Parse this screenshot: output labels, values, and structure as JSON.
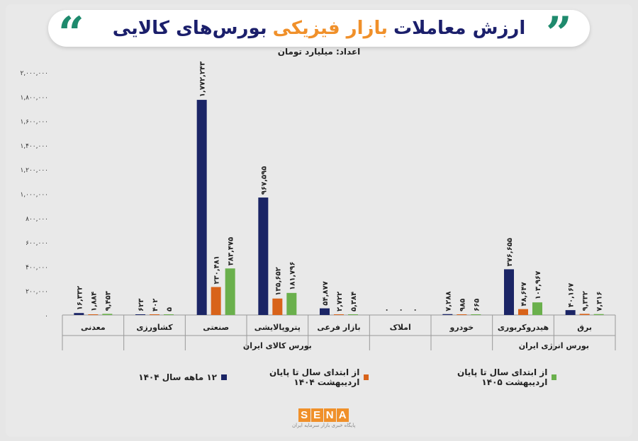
{
  "header": {
    "title_part1": "ارزش معاملات",
    "title_accent": "بازار فیزیکی",
    "title_part2": "بورس‌های کالایی",
    "unit": "اعداد: میلیارد تومان"
  },
  "colors": {
    "series_1": "#1b2566",
    "series_2": "#d8631a",
    "series_3": "#6ab04c",
    "accent": "#f0902a",
    "quote": "#1e8a6d"
  },
  "chart_data": {
    "type": "bar",
    "categories": [
      "معدنی",
      "کشاورزی",
      "صنعتی",
      "پتروپالایشی",
      "بازار فرعی",
      "املاک",
      "خودرو",
      "هیدروکربوری",
      "برق"
    ],
    "series": [
      {
        "name": "۱۲ ماهه سال ۱۴۰۴",
        "values": [
          16332,
          623,
          1772243,
          967595,
          54877,
          0,
          7288,
          376655,
          40167
        ],
        "labels": [
          "۱۶,۳۳۲",
          "۶۲۳",
          "۱,۷۷۲,۲۴۳",
          "۹۶۷,۵۹۵",
          "۵۴,۸۷۷",
          "۰",
          "۷,۲۸۸",
          "۳۷۶,۶۵۵",
          "۴۰,۱۶۷"
        ]
      },
      {
        "name": "از ابتدای سال تا پایان اردیبهشت ۱۴۰۴",
        "values": [
          1884,
          402,
          230481,
          135652,
          2722,
          0,
          985,
          48647,
          9332
        ],
        "labels": [
          "۱,۸۸۴",
          "۴۰۲",
          "۲۳۰,۴۸۱",
          "۱۳۵,۶۵۲",
          "۲,۷۲۲",
          "۰",
          "۹۸۵",
          "۴۸,۶۴۷",
          "۹,۳۳۲"
        ]
      },
      {
        "name": "از ابتدای سال تا پایان اردیبهشت ۱۴۰۵",
        "values": [
          9453,
          5,
          383475,
          181796,
          5384,
          0,
          665,
          103967,
          7316
        ],
        "labels": [
          "۹,۴۵۳",
          "۵",
          "۳۸۳,۴۷۵",
          "۱۸۱,۷۹۶",
          "۵,۳۸۴",
          "۰",
          "۶۶۵",
          "۱۰۳,۹۶۷",
          "۷,۳۱۶"
        ]
      }
    ],
    "groups": [
      {
        "name": "بورس کالای ایران",
        "from": 0,
        "to": 6
      },
      {
        "name": "بورس انرژی ایران",
        "from": 7,
        "to": 8
      }
    ],
    "ylim": [
      0,
      2000000
    ],
    "yticks": [
      0,
      200000,
      400000,
      600000,
      800000,
      1000000,
      1200000,
      1400000,
      1600000,
      1800000,
      2000000
    ],
    "ytick_labels": [
      "۰",
      "۲۰۰,۰۰۰",
      "۴۰۰,۰۰۰",
      "۶۰۰,۰۰۰",
      "۸۰۰,۰۰۰",
      "۱,۰۰۰,۰۰۰",
      "۱,۲۰۰,۰۰۰",
      "۱,۴۰۰,۰۰۰",
      "۱,۶۰۰,۰۰۰",
      "۱,۸۰۰,۰۰۰",
      "۲,۰۰۰,۰۰۰"
    ],
    "grid": false,
    "legend": "bottom"
  },
  "logo": {
    "letters": [
      "S",
      "E",
      "N",
      "A"
    ],
    "tagline": "پایگاه خبری بازار سرمایه ایران"
  }
}
